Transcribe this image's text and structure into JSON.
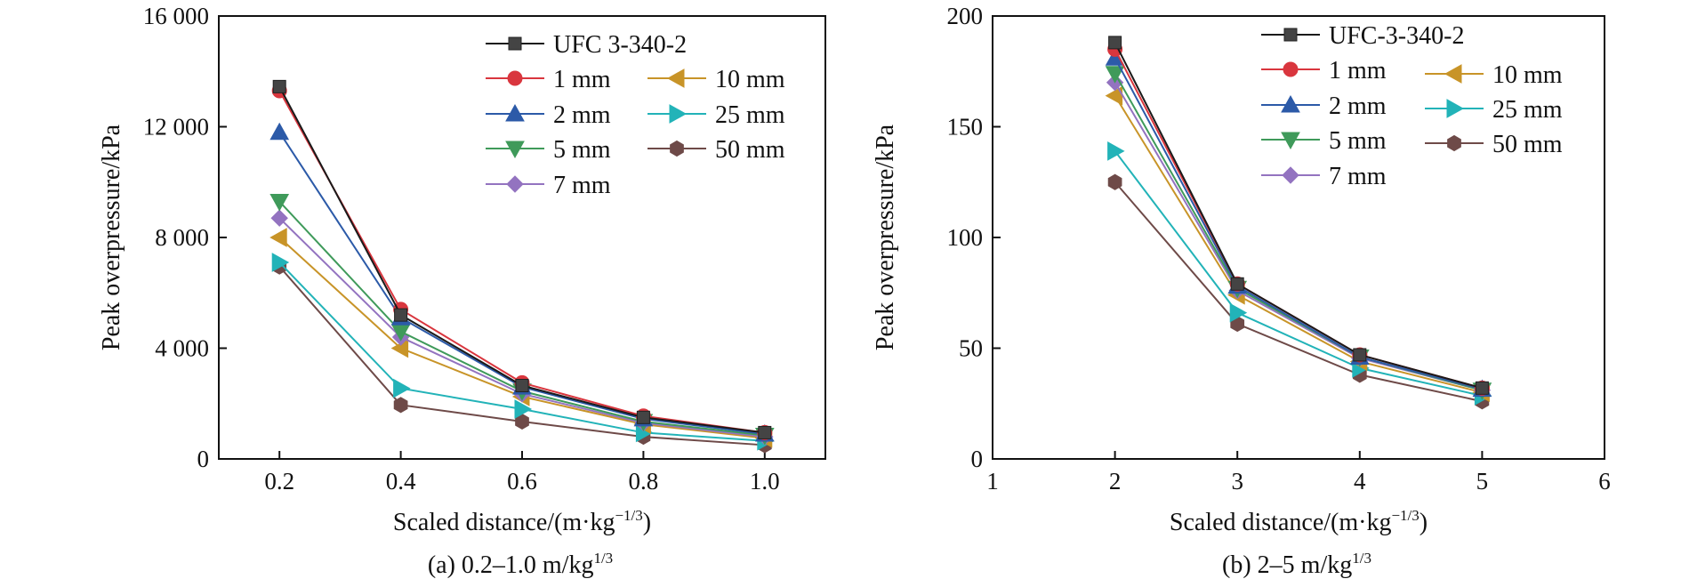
{
  "colors": {
    "UFC": "#1a1a1a",
    "1mm": "#d9363e",
    "2mm": "#2c5aa8",
    "5mm": "#3f9a5a",
    "7mm": "#9373c0",
    "10mm": "#c89428",
    "25mm": "#22b3b8",
    "50mm": "#6e4a48"
  },
  "chart_data": [
    {
      "type": "line",
      "caption": "(a) 0.2–1.0 m/kg",
      "caption_sup": "1/3",
      "xlabel": "Scaled distance/(m·kg",
      "xlabel_sup": "−1/3",
      "xlabel_end": ")",
      "ylabel": "Peak overpressure/kPa",
      "xlim": [
        0.1,
        1.1
      ],
      "ylim": [
        0,
        16000
      ],
      "xticks": [
        0.2,
        0.4,
        0.6,
        0.8,
        1.0
      ],
      "xtick_labels": [
        "0.2",
        "0.4",
        "0.6",
        "0.8",
        "1.0"
      ],
      "yticks": [
        0,
        4000,
        8000,
        12000,
        16000
      ],
      "ytick_labels": [
        "0",
        "4 000",
        "8 000",
        "12 000",
        "16 000"
      ],
      "legend_position": "top-right",
      "x": [
        0.2,
        0.4,
        0.6,
        0.8,
        1.0
      ],
      "series": [
        {
          "name": "UFC 3-340-2",
          "key": "UFC",
          "marker": "square",
          "values": [
            13450,
            5200,
            2650,
            1500,
            950
          ]
        },
        {
          "name": "1 mm",
          "key": "1mm",
          "marker": "circle",
          "values": [
            13300,
            5400,
            2750,
            1550,
            950
          ]
        },
        {
          "name": "2 mm",
          "key": "2mm",
          "marker": "triangle-up",
          "values": [
            11800,
            5100,
            2600,
            1450,
            900
          ]
        },
        {
          "name": "5 mm",
          "key": "5mm",
          "marker": "triangle-down",
          "values": [
            9300,
            4600,
            2450,
            1350,
            850
          ]
        },
        {
          "name": "7 mm",
          "key": "7mm",
          "marker": "diamond",
          "values": [
            8700,
            4400,
            2350,
            1300,
            800
          ]
        },
        {
          "name": "10 mm",
          "key": "10mm",
          "marker": "triangle-left",
          "values": [
            8000,
            4000,
            2250,
            1250,
            750
          ]
        },
        {
          "name": "25 mm",
          "key": "25mm",
          "marker": "triangle-right",
          "values": [
            7100,
            2550,
            1800,
            950,
            650
          ]
        },
        {
          "name": "50 mm",
          "key": "50mm",
          "marker": "hexagon",
          "values": [
            6950,
            1950,
            1350,
            800,
            500
          ]
        }
      ]
    },
    {
      "type": "line",
      "caption": "(b) 2–5 m/kg",
      "caption_sup": "1/3",
      "xlabel": "Scaled distance/(m·kg",
      "xlabel_sup": "−1/3",
      "xlabel_end": ")",
      "ylabel": "Peak overpressure/kPa",
      "xlim": [
        1,
        6
      ],
      "ylim": [
        0,
        200
      ],
      "xticks": [
        1,
        2,
        3,
        4,
        5,
        6
      ],
      "xtick_labels": [
        "1",
        "2",
        "3",
        "4",
        "5",
        "6"
      ],
      "yticks": [
        0,
        50,
        100,
        150,
        200
      ],
      "ytick_labels": [
        "0",
        "50",
        "100",
        "150",
        "200"
      ],
      "legend_position": "top-right",
      "x": [
        2,
        3,
        4,
        5
      ],
      "series": [
        {
          "name": "UFC-3-340-2",
          "key": "UFC",
          "marker": "square",
          "values": [
            188,
            79,
            47,
            32
          ]
        },
        {
          "name": "1 mm",
          "key": "1mm",
          "marker": "circle",
          "values": [
            185,
            79,
            47,
            32
          ]
        },
        {
          "name": "2 mm",
          "key": "2mm",
          "marker": "triangle-up",
          "values": [
            181,
            78,
            46,
            31.5
          ]
        },
        {
          "name": "5 mm",
          "key": "5mm",
          "marker": "triangle-down",
          "values": [
            174,
            77,
            46,
            31
          ]
        },
        {
          "name": "7 mm",
          "key": "7mm",
          "marker": "diamond",
          "values": [
            170,
            76,
            45.5,
            31
          ]
        },
        {
          "name": "10 mm",
          "key": "10mm",
          "marker": "triangle-left",
          "values": [
            164,
            74,
            44,
            30
          ]
        },
        {
          "name": "25 mm",
          "key": "25mm",
          "marker": "triangle-right",
          "values": [
            139,
            66,
            41,
            28.5
          ]
        },
        {
          "name": "50 mm",
          "key": "50mm",
          "marker": "hexagon",
          "values": [
            125,
            61,
            38,
            26
          ]
        }
      ]
    }
  ]
}
